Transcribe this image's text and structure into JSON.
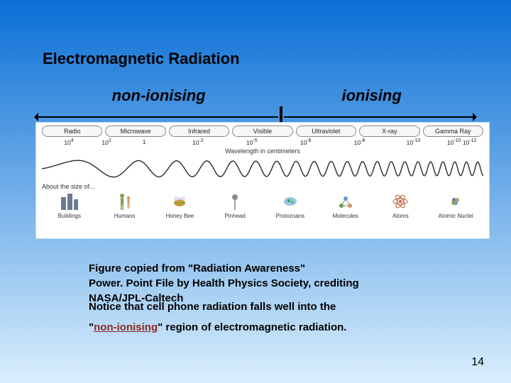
{
  "background": {
    "top": "#0a6fd6",
    "bottom": "#d9eefc"
  },
  "title": "Electromagnetic Radiation",
  "categories": {
    "left": "non-ionising",
    "right": "ionising",
    "divider_ratio": 0.56
  },
  "spectrum": {
    "bands": [
      {
        "name": "Radio",
        "wavelength_exp": 4
      },
      {
        "name": "Microwave",
        "wavelength_exp": 0
      },
      {
        "name": "Infrared",
        "wavelength_exp": -2
      },
      {
        "name": "Visible",
        "wavelength_exp": -5
      },
      {
        "name": "Ultraviolet",
        "wavelength_exp": -6
      },
      {
        "name": "X-ray",
        "wavelength_exp": -8
      },
      {
        "name": "Gamma Ray",
        "wavelength_exp": -10
      }
    ],
    "extra_wavelength_labels": [
      "10²",
      "10⁻¹²"
    ],
    "wavelength_caption": "Wavelength in centimeters",
    "size_caption": "About the size of...",
    "wave": {
      "stroke": "#2a2a2a",
      "stroke_width": 1.4,
      "freq_left_cycles": 1.5,
      "freq_right_cycles": 40,
      "amplitude": 12
    },
    "objects": [
      {
        "label": "Buildings",
        "icon": "buildings",
        "color": "#6b7a8f"
      },
      {
        "label": "Humans",
        "icon": "humans",
        "color": "#7aa34a"
      },
      {
        "label": "Honey Bee",
        "icon": "bee",
        "color": "#c79a3a"
      },
      {
        "label": "Pinhead",
        "icon": "pinhead",
        "color": "#8a8a8a"
      },
      {
        "label": "Protozoans",
        "icon": "protozoan",
        "color": "#5aa0c9"
      },
      {
        "label": "Molecules",
        "icon": "molecule",
        "color": "#6a9e55"
      },
      {
        "label": "Atoms",
        "icon": "atom",
        "color": "#b65b3d"
      },
      {
        "label": "Atomic Nuclei",
        "icon": "nucleus",
        "color": "#5b6fb0"
      }
    ]
  },
  "caption": {
    "line1": "Figure copied from \"Radiation Awareness\"",
    "line2": "Power. Point File by Health Physics Society, crediting",
    "line3a": "NASA/JPL-Caltech",
    "line3b": "Notice that cell phone radiation falls well into the",
    "line4a": "\"",
    "highlight": "non-ionising",
    "line4b": "\" region of electromagnetic radiation."
  },
  "page_number": 14
}
